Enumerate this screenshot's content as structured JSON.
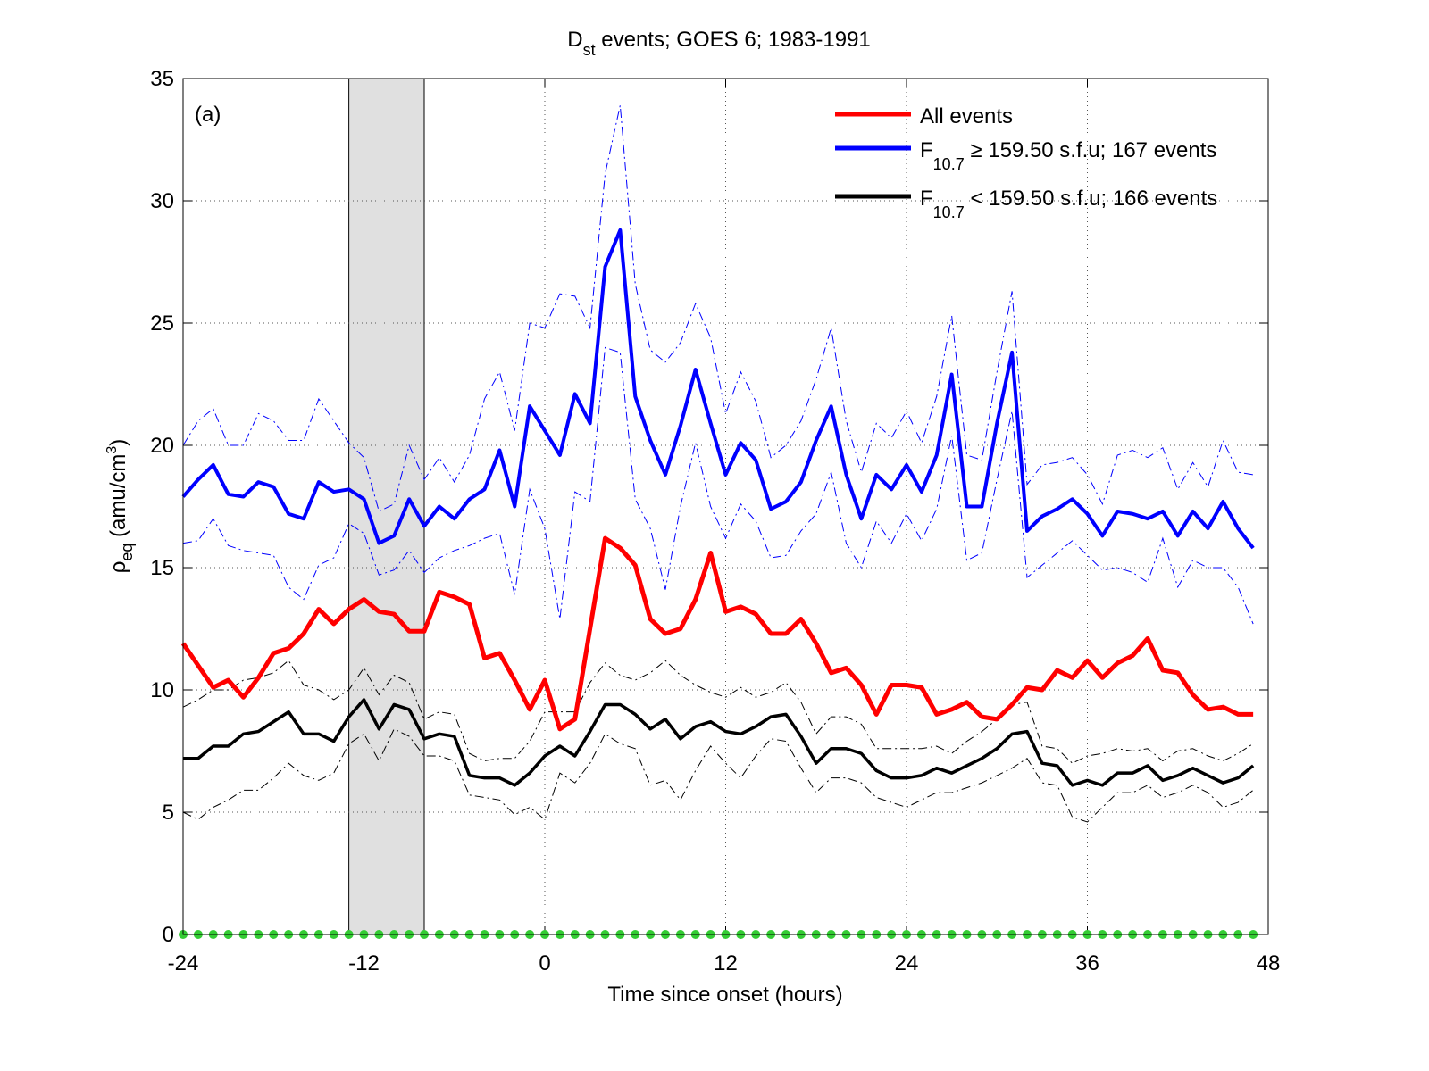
{
  "chart_data": {
    "type": "line",
    "title": [
      "D",
      "st",
      " events; GOES 6; 1983-1991"
    ],
    "xlabel": "Time since onset (hours)",
    "ylabel": [
      "ρ",
      "eq",
      " (amu/cm",
      "3",
      ")"
    ],
    "annotation": "(a)",
    "xlim": [
      -24,
      48
    ],
    "xticks": [
      -24,
      -12,
      0,
      12,
      24,
      36,
      48
    ],
    "ylim": [
      0,
      35
    ],
    "yticks": [
      0,
      5,
      10,
      15,
      20,
      25,
      30,
      35
    ],
    "grid": true,
    "legend": "upper right",
    "shaded_span": {
      "x": [
        -13,
        -8
      ],
      "color": "#e0e0e0"
    },
    "x": [
      -24,
      -23,
      -22,
      -21,
      -20,
      -19,
      -18,
      -17,
      -16,
      -15,
      -14,
      -13,
      -12,
      -11,
      -10,
      -9,
      -8,
      -7,
      -6,
      -5,
      -4,
      -3,
      -2,
      -1,
      0,
      1,
      2,
      3,
      4,
      5,
      6,
      7,
      8,
      9,
      10,
      11,
      12,
      13,
      14,
      15,
      16,
      17,
      18,
      19,
      20,
      21,
      22,
      23,
      24,
      25,
      26,
      27,
      28,
      29,
      30,
      31,
      32,
      33,
      34,
      35,
      36,
      37,
      38,
      39,
      40,
      41,
      42,
      43,
      44,
      45,
      46,
      47
    ],
    "series": [
      {
        "name": "All events",
        "color": "#ff0000",
        "width": 5,
        "values": [
          11.9,
          11.0,
          10.1,
          10.4,
          9.7,
          10.5,
          11.5,
          11.7,
          12.3,
          13.3,
          12.7,
          13.3,
          13.7,
          13.2,
          13.1,
          12.4,
          12.4,
          14.0,
          13.8,
          13.5,
          11.3,
          11.5,
          10.4,
          9.2,
          10.4,
          8.4,
          8.8,
          12.5,
          16.2,
          15.8,
          15.1,
          12.9,
          12.3,
          12.5,
          13.7,
          15.6,
          13.2,
          13.4,
          13.1,
          12.3,
          12.3,
          12.9,
          11.9,
          10.7,
          10.9,
          10.2,
          9.0,
          10.2,
          10.2,
          10.1,
          9.0,
          9.2,
          9.5,
          8.9,
          8.8,
          9.4,
          10.1,
          10.0,
          10.8,
          10.5,
          11.2,
          10.5,
          11.1,
          11.4,
          12.1,
          10.8,
          10.7,
          9.8,
          9.2,
          9.3,
          9.0,
          9.0
        ]
      },
      {
        "name": [
          "F",
          "10.7",
          " ≥ 159.50 s.f.u; 167 events"
        ],
        "color": "#0000ff",
        "width": 4,
        "values": [
          17.9,
          18.6,
          19.2,
          18.0,
          17.9,
          18.5,
          18.3,
          17.2,
          17.0,
          18.5,
          18.1,
          18.2,
          17.8,
          16.0,
          16.3,
          17.8,
          16.7,
          17.5,
          17.0,
          17.8,
          18.2,
          19.8,
          17.5,
          21.6,
          20.6,
          19.6,
          22.1,
          20.9,
          27.3,
          28.8,
          22.0,
          20.2,
          18.8,
          20.8,
          23.1,
          20.9,
          18.8,
          20.1,
          19.4,
          17.4,
          17.7,
          18.5,
          20.2,
          21.6,
          18.8,
          17.0,
          18.8,
          18.2,
          19.2,
          18.1,
          19.6,
          22.9,
          17.5,
          17.5,
          20.9,
          23.8,
          16.5,
          17.1,
          17.4,
          17.8,
          17.2,
          16.3,
          17.3,
          17.2,
          17.0,
          17.3,
          16.3,
          17.3,
          16.6,
          17.7,
          16.6,
          15.8
        ],
        "upper": [
          20.0,
          21.0,
          21.5,
          20.0,
          20.0,
          21.3,
          21.0,
          20.2,
          20.2,
          21.9,
          21.0,
          20.1,
          19.5,
          17.3,
          17.6,
          20.0,
          18.6,
          19.5,
          18.5,
          19.6,
          21.9,
          23.0,
          20.6,
          25.0,
          24.8,
          26.2,
          26.1,
          24.8,
          31.1,
          33.9,
          26.6,
          23.9,
          23.4,
          24.2,
          25.8,
          24.4,
          21.3,
          23.0,
          21.8,
          19.5,
          20.0,
          21.0,
          22.7,
          24.8,
          21.0,
          18.9,
          20.9,
          20.3,
          21.4,
          20.1,
          22.0,
          25.3,
          19.6,
          19.4,
          23.0,
          26.3,
          18.4,
          19.2,
          19.3,
          19.5,
          18.8,
          17.6,
          19.6,
          19.8,
          19.5,
          19.9,
          18.2,
          19.3,
          18.3,
          20.2,
          18.9,
          18.8
        ],
        "lower": [
          16.0,
          16.1,
          17.0,
          15.9,
          15.7,
          15.6,
          15.5,
          14.2,
          13.7,
          15.1,
          15.4,
          16.8,
          16.4,
          14.7,
          14.9,
          15.7,
          14.8,
          15.4,
          15.7,
          15.9,
          16.2,
          16.4,
          13.9,
          18.2,
          16.6,
          12.9,
          18.1,
          17.7,
          24.0,
          23.8,
          17.8,
          16.6,
          14.1,
          17.5,
          20.1,
          17.5,
          16.2,
          17.6,
          16.9,
          15.4,
          15.5,
          16.5,
          17.2,
          18.9,
          16.0,
          15.0,
          16.9,
          16.0,
          17.2,
          16.1,
          17.4,
          20.4,
          15.3,
          15.6,
          18.6,
          21.4,
          14.6,
          15.1,
          15.6,
          16.1,
          15.5,
          14.9,
          15.0,
          14.8,
          14.4,
          16.2,
          14.2,
          15.3,
          15.0,
          15.0,
          14.2,
          12.7
        ]
      },
      {
        "name": [
          "F",
          "10.7",
          " < 159.50 s.f.u; 166 events"
        ],
        "color": "#000000",
        "width": 3.5,
        "values": [
          7.2,
          7.2,
          7.7,
          7.7,
          8.2,
          8.3,
          8.7,
          9.1,
          8.2,
          8.2,
          7.9,
          8.9,
          9.6,
          8.4,
          9.4,
          9.2,
          8.0,
          8.2,
          8.1,
          6.5,
          6.4,
          6.4,
          6.1,
          6.6,
          7.3,
          7.7,
          7.3,
          8.3,
          9.4,
          9.4,
          9.0,
          8.4,
          8.8,
          8.0,
          8.5,
          8.7,
          8.3,
          8.2,
          8.5,
          8.9,
          9.0,
          8.1,
          7.0,
          7.6,
          7.6,
          7.4,
          6.7,
          6.4,
          6.4,
          6.5,
          6.8,
          6.6,
          6.9,
          7.2,
          7.6,
          8.2,
          8.3,
          7.0,
          6.9,
          6.1,
          6.3,
          6.1,
          6.6,
          6.6,
          6.9,
          6.3,
          6.5,
          6.8,
          6.5,
          6.2,
          6.4,
          6.9
        ],
        "upper": [
          9.3,
          9.6,
          10.0,
          10.0,
          10.4,
          10.5,
          10.7,
          11.2,
          10.2,
          10.0,
          9.6,
          10.0,
          10.9,
          9.8,
          10.6,
          10.3,
          8.8,
          9.1,
          9.0,
          7.4,
          7.1,
          7.2,
          7.2,
          7.9,
          9.1,
          9.1,
          9.1,
          10.3,
          11.1,
          10.6,
          10.4,
          10.7,
          11.2,
          10.6,
          10.2,
          9.9,
          9.7,
          10.1,
          9.7,
          9.9,
          10.3,
          9.5,
          8.2,
          8.9,
          8.9,
          8.6,
          7.6,
          7.6,
          7.6,
          7.6,
          7.7,
          7.4,
          7.9,
          8.3,
          8.8,
          9.4,
          9.5,
          7.7,
          7.6,
          7.0,
          7.3,
          7.4,
          7.6,
          7.5,
          7.6,
          7.1,
          7.5,
          7.6,
          7.3,
          7.1,
          7.4,
          7.8
        ],
        "lower": [
          5.0,
          4.7,
          5.2,
          5.5,
          5.9,
          5.9,
          6.4,
          7.0,
          6.5,
          6.3,
          6.6,
          7.8,
          8.2,
          7.1,
          8.4,
          8.1,
          7.3,
          7.3,
          7.1,
          5.7,
          5.6,
          5.5,
          4.9,
          5.2,
          4.7,
          6.6,
          6.2,
          7.0,
          8.2,
          7.8,
          7.6,
          6.1,
          6.3,
          5.5,
          6.7,
          7.7,
          7.0,
          6.4,
          7.3,
          8.0,
          7.9,
          6.8,
          5.8,
          6.4,
          6.4,
          6.2,
          5.6,
          5.4,
          5.2,
          5.5,
          5.8,
          5.8,
          6.0,
          6.2,
          6.5,
          6.8,
          7.2,
          6.2,
          6.1,
          4.8,
          4.6,
          5.2,
          5.8,
          5.8,
          6.1,
          5.6,
          5.8,
          6.1,
          5.8,
          5.2,
          5.4,
          5.9
        ]
      }
    ],
    "markers": {
      "color": "#33cc33",
      "values": [
        0,
        0,
        0,
        0,
        0,
        0,
        0,
        0,
        0,
        0,
        0,
        0,
        0,
        0,
        0,
        0,
        0,
        0,
        0,
        0,
        0,
        0,
        0,
        0,
        0,
        0,
        0,
        0,
        0,
        0,
        0,
        0,
        0,
        0,
        0,
        0,
        0,
        0,
        0,
        0,
        0,
        0,
        0,
        0,
        0,
        0,
        0,
        0,
        0,
        0,
        0,
        0,
        0,
        0,
        0,
        0,
        0,
        0,
        0,
        0,
        0,
        0,
        0,
        0,
        0,
        0,
        0,
        0,
        0,
        0,
        0,
        0
      ]
    }
  }
}
